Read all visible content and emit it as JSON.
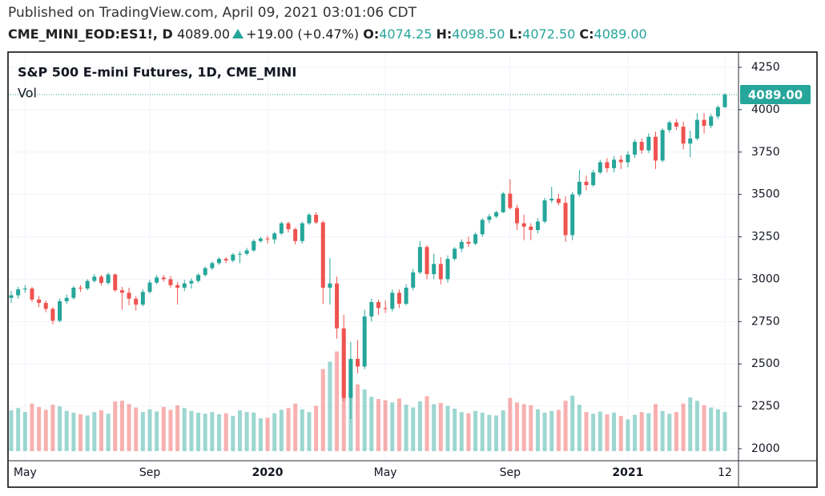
{
  "header": {
    "published": "Published on TradingView.com, April 09, 2021 03:01:06 CDT",
    "symbol": "CME_MINI_EOD:ES1!, D",
    "last": "4089.00",
    "change": "+19.00 (+0.47%)",
    "open_label": "O:",
    "open": "4074.25",
    "high_label": "H:",
    "high": "4098.50",
    "low_label": "L:",
    "low": "4072.50",
    "close_label": "C:",
    "close": "4089.00"
  },
  "chart_data": {
    "type": "candlestick",
    "title": "S&P 500 E-mini Futures, 1D, CME_MINI",
    "volume_label": "Vol",
    "up_color": "#26a69a",
    "down_color": "#ef5350",
    "grid": true,
    "last_price": {
      "value": 4089,
      "label": "4089.00"
    },
    "ylim": [
      2000,
      4250
    ],
    "yticks": [
      2000,
      2250,
      2500,
      2750,
      3000,
      3250,
      3500,
      3750,
      4000,
      4250
    ],
    "categories": [
      null,
      null,
      "May",
      null,
      null,
      null,
      null,
      null,
      null,
      null,
      null,
      null,
      null,
      null,
      null,
      null,
      null,
      null,
      null,
      null,
      "Sep",
      null,
      null,
      null,
      null,
      null,
      null,
      null,
      null,
      null,
      null,
      null,
      null,
      null,
      null,
      null,
      null,
      "2020",
      null,
      null,
      null,
      null,
      null,
      null,
      null,
      null,
      null,
      null,
      null,
      null,
      null,
      null,
      null,
      null,
      "May",
      null,
      null,
      null,
      null,
      null,
      null,
      null,
      null,
      null,
      null,
      null,
      null,
      null,
      null,
      null,
      null,
      null,
      "Sep",
      null,
      null,
      null,
      null,
      null,
      null,
      null,
      null,
      null,
      null,
      null,
      null,
      null,
      null,
      null,
      null,
      "2021",
      null,
      null,
      null,
      null,
      null,
      null,
      null,
      null,
      null,
      null,
      null,
      null,
      null,
      "12"
    ],
    "open": [
      2890,
      2905,
      2940,
      2945,
      2880,
      2860,
      2825,
      2755,
      2870,
      2890,
      2950,
      2945,
      2990,
      3015,
      2978,
      3028,
      2935,
      2920,
      2885,
      2850,
      2925,
      2980,
      3010,
      3000,
      2965,
      2950,
      2975,
      2990,
      3025,
      3065,
      3095,
      3120,
      3110,
      3145,
      3150,
      3170,
      3225,
      3240,
      3235,
      3270,
      3330,
      3295,
      3225,
      3330,
      3380,
      3335,
      2950,
      2975,
      2710,
      2300,
      2530,
      2485,
      2780,
      2865,
      2830,
      2825,
      2920,
      2855,
      2950,
      3040,
      3190,
      3030,
      3090,
      3000,
      3120,
      3180,
      3220,
      3210,
      3265,
      3350,
      3370,
      3395,
      3505,
      3420,
      3330,
      3310,
      3290,
      3340,
      3465,
      3475,
      3450,
      3260,
      3500,
      3575,
      3555,
      3630,
      3690,
      3655,
      3705,
      3690,
      3735,
      3810,
      3760,
      3840,
      3700,
      3880,
      3925,
      3900,
      3800,
      3830,
      3940,
      3905,
      3960,
      4015
    ],
    "high": [
      2930,
      2955,
      2965,
      2955,
      2900,
      2875,
      2835,
      2885,
      2910,
      2960,
      2965,
      3000,
      3030,
      3025,
      3038,
      3033,
      2955,
      2950,
      2900,
      2940,
      2995,
      3025,
      3025,
      3020,
      2985,
      2995,
      3005,
      3035,
      3075,
      3105,
      3130,
      3130,
      3155,
      3165,
      3185,
      3235,
      3250,
      3255,
      3280,
      3340,
      3340,
      3305,
      3340,
      3390,
      3395,
      3345,
      3125,
      3015,
      2790,
      2630,
      2640,
      2820,
      2885,
      2880,
      2875,
      2940,
      2940,
      2970,
      3060,
      3225,
      3200,
      3150,
      3130,
      3140,
      3190,
      3235,
      3250,
      3275,
      3360,
      3385,
      3405,
      3515,
      3590,
      3440,
      3380,
      3330,
      3360,
      3480,
      3545,
      3505,
      3490,
      3515,
      3645,
      3610,
      3645,
      3705,
      3715,
      3725,
      3730,
      3755,
      3825,
      3830,
      3860,
      3870,
      3890,
      3935,
      3945,
      3930,
      3875,
      3980,
      3980,
      3975,
      4025,
      4099
    ],
    "low": [
      2860,
      2885,
      2920,
      2865,
      2835,
      2805,
      2735,
      2745,
      2855,
      2880,
      2925,
      2935,
      2980,
      2963,
      2968,
      2925,
      2820,
      2845,
      2815,
      2840,
      2915,
      2970,
      2985,
      2950,
      2850,
      2930,
      2945,
      2980,
      3015,
      3055,
      3085,
      3095,
      3100,
      3095,
      3140,
      3160,
      3215,
      3210,
      3210,
      3260,
      3275,
      3205,
      3210,
      3320,
      3325,
      2855,
      2850,
      2650,
      2280,
      2175,
      2445,
      2470,
      2750,
      2790,
      2800,
      2810,
      2830,
      2845,
      2935,
      3030,
      3000,
      3000,
      2970,
      2980,
      3110,
      3160,
      3190,
      3200,
      3250,
      3330,
      3360,
      3390,
      3410,
      3290,
      3230,
      3230,
      3270,
      3330,
      3450,
      3435,
      3220,
      3230,
      3485,
      3525,
      3545,
      3620,
      3630,
      3630,
      3650,
      3660,
      3715,
      3740,
      3745,
      3650,
      3690,
      3865,
      3880,
      3765,
      3720,
      3820,
      3860,
      3890,
      3945,
      4010
    ],
    "close": [
      2905,
      2940,
      2945,
      2880,
      2860,
      2825,
      2755,
      2870,
      2890,
      2950,
      2945,
      2990,
      3015,
      2978,
      3028,
      2935,
      2920,
      2885,
      2850,
      2925,
      2980,
      3010,
      3000,
      2965,
      2950,
      2975,
      2990,
      3025,
      3065,
      3095,
      3120,
      3110,
      3145,
      3150,
      3170,
      3225,
      3240,
      3235,
      3270,
      3330,
      3295,
      3225,
      3330,
      3380,
      3335,
      2950,
      2975,
      2710,
      2300,
      2530,
      2485,
      2780,
      2865,
      2830,
      2825,
      2920,
      2855,
      2950,
      3040,
      3190,
      3030,
      3090,
      3000,
      3120,
      3180,
      3220,
      3210,
      3265,
      3350,
      3370,
      3395,
      3505,
      3420,
      3330,
      3310,
      3290,
      3340,
      3465,
      3475,
      3450,
      3260,
      3500,
      3575,
      3555,
      3630,
      3690,
      3655,
      3705,
      3690,
      3735,
      3810,
      3760,
      3840,
      3700,
      3880,
      3925,
      3900,
      3800,
      3830,
      3940,
      3905,
      3960,
      4015,
      4089
    ],
    "volume": [
      7200000,
      7600000,
      6900000,
      8400000,
      7800000,
      7300000,
      8200000,
      7900000,
      7100000,
      6800000,
      6500000,
      6300000,
      6900000,
      7200000,
      6600000,
      8800000,
      8900000,
      8300000,
      7700000,
      6900000,
      7400000,
      7000000,
      7800000,
      7300000,
      8100000,
      7600000,
      7100000,
      6800000,
      6600000,
      6900000,
      6500000,
      6700000,
      6200000,
      7200000,
      6900000,
      6800000,
      5800000,
      5900000,
      6700000,
      7300000,
      7600000,
      8400000,
      7400000,
      6900000,
      8000000,
      14500000,
      15800000,
      17600000,
      18400000,
      16200000,
      11800000,
      10900000,
      9600000,
      9200000,
      9000000,
      8600000,
      9300000,
      8200000,
      7700000,
      8800000,
      9700000,
      8300000,
      8500000,
      8000000,
      7500000,
      6900000,
      6700000,
      7100000,
      6800000,
      6400000,
      6300000,
      7200000,
      9400000,
      8600000,
      8300000,
      8100000,
      7400000,
      6800000,
      7100000,
      7300000,
      8900000,
      9800000,
      8200000,
      6900000,
      6600000,
      7000000,
      6500000,
      6800000,
      6200000,
      5600000,
      6400000,
      6900000,
      6700000,
      8300000,
      7100000,
      6600000,
      6900000,
      8400000,
      9500000,
      8900000,
      8100000,
      7700000,
      7400000,
      6900000
    ]
  }
}
